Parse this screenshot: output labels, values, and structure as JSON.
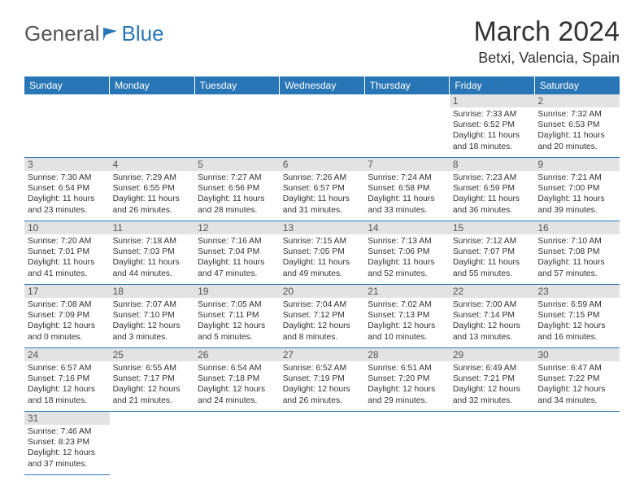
{
  "logo": {
    "text1": "General",
    "text2": "Blue"
  },
  "title": "March 2024",
  "location": "Betxi, Valencia, Spain",
  "weekdays": [
    "Sunday",
    "Monday",
    "Tuesday",
    "Wednesday",
    "Thursday",
    "Friday",
    "Saturday"
  ],
  "colors": {
    "accent": "#2976b6",
    "dayBar": "#e3e3e3"
  },
  "weeks": [
    [
      {
        "empty": true
      },
      {
        "empty": true
      },
      {
        "empty": true
      },
      {
        "empty": true
      },
      {
        "empty": true
      },
      {
        "day": "1",
        "sunrise": "Sunrise: 7:33 AM",
        "sunset": "Sunset: 6:52 PM",
        "daylight": "Daylight: 11 hours and 18 minutes."
      },
      {
        "day": "2",
        "sunrise": "Sunrise: 7:32 AM",
        "sunset": "Sunset: 6:53 PM",
        "daylight": "Daylight: 11 hours and 20 minutes."
      }
    ],
    [
      {
        "day": "3",
        "sunrise": "Sunrise: 7:30 AM",
        "sunset": "Sunset: 6:54 PM",
        "daylight": "Daylight: 11 hours and 23 minutes."
      },
      {
        "day": "4",
        "sunrise": "Sunrise: 7:29 AM",
        "sunset": "Sunset: 6:55 PM",
        "daylight": "Daylight: 11 hours and 26 minutes."
      },
      {
        "day": "5",
        "sunrise": "Sunrise: 7:27 AM",
        "sunset": "Sunset: 6:56 PM",
        "daylight": "Daylight: 11 hours and 28 minutes."
      },
      {
        "day": "6",
        "sunrise": "Sunrise: 7:26 AM",
        "sunset": "Sunset: 6:57 PM",
        "daylight": "Daylight: 11 hours and 31 minutes."
      },
      {
        "day": "7",
        "sunrise": "Sunrise: 7:24 AM",
        "sunset": "Sunset: 6:58 PM",
        "daylight": "Daylight: 11 hours and 33 minutes."
      },
      {
        "day": "8",
        "sunrise": "Sunrise: 7:23 AM",
        "sunset": "Sunset: 6:59 PM",
        "daylight": "Daylight: 11 hours and 36 minutes."
      },
      {
        "day": "9",
        "sunrise": "Sunrise: 7:21 AM",
        "sunset": "Sunset: 7:00 PM",
        "daylight": "Daylight: 11 hours and 39 minutes."
      }
    ],
    [
      {
        "day": "10",
        "sunrise": "Sunrise: 7:20 AM",
        "sunset": "Sunset: 7:01 PM",
        "daylight": "Daylight: 11 hours and 41 minutes."
      },
      {
        "day": "11",
        "sunrise": "Sunrise: 7:18 AM",
        "sunset": "Sunset: 7:03 PM",
        "daylight": "Daylight: 11 hours and 44 minutes."
      },
      {
        "day": "12",
        "sunrise": "Sunrise: 7:16 AM",
        "sunset": "Sunset: 7:04 PM",
        "daylight": "Daylight: 11 hours and 47 minutes."
      },
      {
        "day": "13",
        "sunrise": "Sunrise: 7:15 AM",
        "sunset": "Sunset: 7:05 PM",
        "daylight": "Daylight: 11 hours and 49 minutes."
      },
      {
        "day": "14",
        "sunrise": "Sunrise: 7:13 AM",
        "sunset": "Sunset: 7:06 PM",
        "daylight": "Daylight: 11 hours and 52 minutes."
      },
      {
        "day": "15",
        "sunrise": "Sunrise: 7:12 AM",
        "sunset": "Sunset: 7:07 PM",
        "daylight": "Daylight: 11 hours and 55 minutes."
      },
      {
        "day": "16",
        "sunrise": "Sunrise: 7:10 AM",
        "sunset": "Sunset: 7:08 PM",
        "daylight": "Daylight: 11 hours and 57 minutes."
      }
    ],
    [
      {
        "day": "17",
        "sunrise": "Sunrise: 7:08 AM",
        "sunset": "Sunset: 7:09 PM",
        "daylight": "Daylight: 12 hours and 0 minutes."
      },
      {
        "day": "18",
        "sunrise": "Sunrise: 7:07 AM",
        "sunset": "Sunset: 7:10 PM",
        "daylight": "Daylight: 12 hours and 3 minutes."
      },
      {
        "day": "19",
        "sunrise": "Sunrise: 7:05 AM",
        "sunset": "Sunset: 7:11 PM",
        "daylight": "Daylight: 12 hours and 5 minutes."
      },
      {
        "day": "20",
        "sunrise": "Sunrise: 7:04 AM",
        "sunset": "Sunset: 7:12 PM",
        "daylight": "Daylight: 12 hours and 8 minutes."
      },
      {
        "day": "21",
        "sunrise": "Sunrise: 7:02 AM",
        "sunset": "Sunset: 7:13 PM",
        "daylight": "Daylight: 12 hours and 10 minutes."
      },
      {
        "day": "22",
        "sunrise": "Sunrise: 7:00 AM",
        "sunset": "Sunset: 7:14 PM",
        "daylight": "Daylight: 12 hours and 13 minutes."
      },
      {
        "day": "23",
        "sunrise": "Sunrise: 6:59 AM",
        "sunset": "Sunset: 7:15 PM",
        "daylight": "Daylight: 12 hours and 16 minutes."
      }
    ],
    [
      {
        "day": "24",
        "sunrise": "Sunrise: 6:57 AM",
        "sunset": "Sunset: 7:16 PM",
        "daylight": "Daylight: 12 hours and 18 minutes."
      },
      {
        "day": "25",
        "sunrise": "Sunrise: 6:55 AM",
        "sunset": "Sunset: 7:17 PM",
        "daylight": "Daylight: 12 hours and 21 minutes."
      },
      {
        "day": "26",
        "sunrise": "Sunrise: 6:54 AM",
        "sunset": "Sunset: 7:18 PM",
        "daylight": "Daylight: 12 hours and 24 minutes."
      },
      {
        "day": "27",
        "sunrise": "Sunrise: 6:52 AM",
        "sunset": "Sunset: 7:19 PM",
        "daylight": "Daylight: 12 hours and 26 minutes."
      },
      {
        "day": "28",
        "sunrise": "Sunrise: 6:51 AM",
        "sunset": "Sunset: 7:20 PM",
        "daylight": "Daylight: 12 hours and 29 minutes."
      },
      {
        "day": "29",
        "sunrise": "Sunrise: 6:49 AM",
        "sunset": "Sunset: 7:21 PM",
        "daylight": "Daylight: 12 hours and 32 minutes."
      },
      {
        "day": "30",
        "sunrise": "Sunrise: 6:47 AM",
        "sunset": "Sunset: 7:22 PM",
        "daylight": "Daylight: 12 hours and 34 minutes."
      }
    ],
    [
      {
        "day": "31",
        "sunrise": "Sunrise: 7:46 AM",
        "sunset": "Sunset: 8:23 PM",
        "daylight": "Daylight: 12 hours and 37 minutes."
      },
      {
        "empty": true,
        "noborder": true
      },
      {
        "empty": true,
        "noborder": true
      },
      {
        "empty": true,
        "noborder": true
      },
      {
        "empty": true,
        "noborder": true
      },
      {
        "empty": true,
        "noborder": true
      },
      {
        "empty": true,
        "noborder": true
      }
    ]
  ]
}
